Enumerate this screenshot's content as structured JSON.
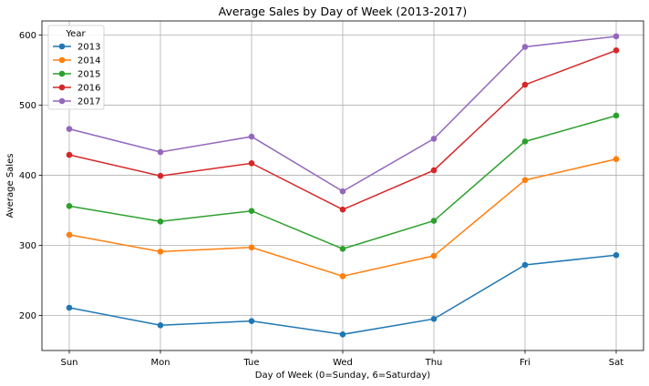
{
  "chart_data": {
    "type": "line",
    "title": "Average Sales by Day of Week (2013-2017)",
    "xlabel": "Day of Week (0=Sunday, 6=Saturday)",
    "ylabel": "Average Sales",
    "categories": [
      "Sun",
      "Mon",
      "Tue",
      "Wed",
      "Thu",
      "Fri",
      "Sat"
    ],
    "ylim": [
      150,
      620
    ],
    "yticks": [
      200,
      300,
      400,
      500,
      600
    ],
    "grid": true,
    "legend": {
      "title": "Year",
      "placement": "top-left"
    },
    "series": [
      {
        "name": "2013",
        "color": "#1f77b4",
        "values": [
          211,
          186,
          192,
          173,
          195,
          272,
          286
        ]
      },
      {
        "name": "2014",
        "color": "#ff7f0e",
        "values": [
          315,
          291,
          297,
          256,
          285,
          393,
          423
        ]
      },
      {
        "name": "2015",
        "color": "#2ca02c",
        "values": [
          356,
          334,
          349,
          295,
          335,
          448,
          485
        ]
      },
      {
        "name": "2016",
        "color": "#d62728",
        "values": [
          429,
          399,
          417,
          351,
          407,
          529,
          578
        ]
      },
      {
        "name": "2017",
        "color": "#9467bd",
        "values": [
          466,
          433,
          455,
          377,
          452,
          583,
          598
        ]
      }
    ]
  }
}
